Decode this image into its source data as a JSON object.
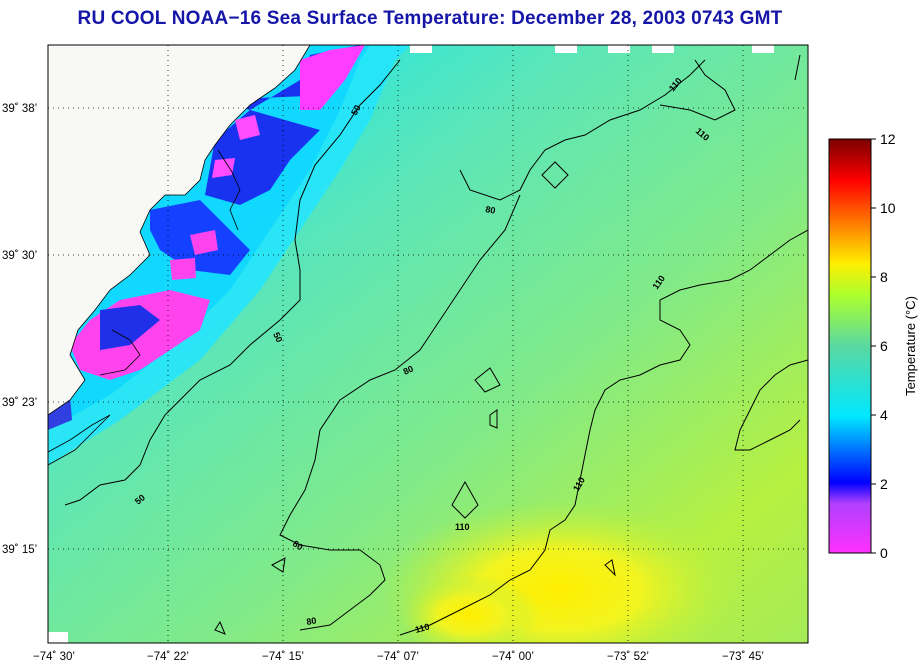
{
  "title": "RU COOL  NOAA−16  Sea Surface Temperature:  December 28, 2003 0743 GMT",
  "map": {
    "lon_ticks": [
      "−74˚ 30’",
      "−74˚ 22’",
      "−74˚ 15’",
      "−74˚ 07’",
      "−74˚ 00’",
      "−73˚ 52’",
      "−73˚ 45’"
    ],
    "lat_ticks": [
      "39˚ 38’",
      "39˚ 30’",
      "39˚ 23’",
      "39˚ 15’"
    ],
    "contour_labels": [
      "50",
      "50",
      "50",
      "80",
      "80",
      "80",
      "80",
      "110",
      "110",
      "110",
      "110",
      "110",
      "110"
    ],
    "colors": {
      "land": "#f8f8f4",
      "coast": "#000000",
      "grid": "#000000"
    }
  },
  "colorbar": {
    "label": "Temperature (°C)",
    "ticks": [
      "12",
      "10",
      "8",
      "6",
      "4",
      "2",
      "0"
    ],
    "stops": [
      "#ff30ff",
      "#0000ff",
      "#00e8ff",
      "#5ad8a0",
      "#aaff30",
      "#ffee00",
      "#ff7800",
      "#ff0000",
      "#7a0000"
    ]
  }
}
